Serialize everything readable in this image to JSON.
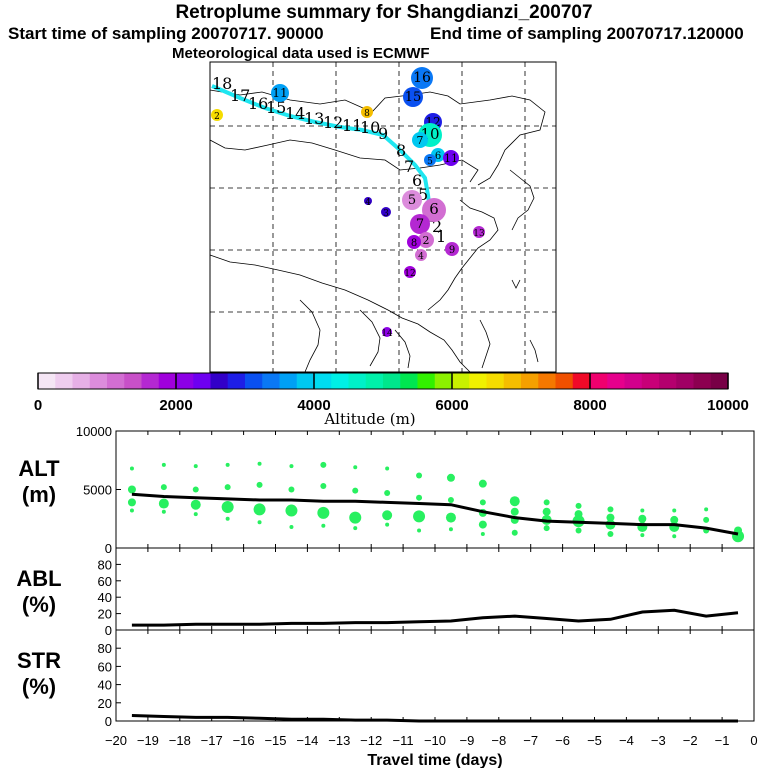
{
  "header": {
    "title": "Retroplume summary for Shangdianzi_200707",
    "start_time": "Start time of sampling 20070717. 90000",
    "end_time": "End time of sampling 20070717.120000",
    "met_data": "Meteorological data used is ECMWF"
  },
  "colorbar": {
    "label": "Altitude (m)",
    "ticks": [
      "0",
      "2000",
      "4000",
      "6000",
      "8000",
      "10000"
    ],
    "colors": [
      "#f5e6f5",
      "#efcdef",
      "#e6b0e6",
      "#dc8cdc",
      "#d26ed2",
      "#c850c8",
      "#b428d2",
      "#a000dc",
      "#8c00e6",
      "#6e00f0",
      "#3200c8",
      "#1e1ee6",
      "#0a50f0",
      "#0a78f5",
      "#00a0f5",
      "#00c8f0",
      "#00dcf0",
      "#00f0e6",
      "#00f0c8",
      "#00f0aa",
      "#00e68c",
      "#00e650",
      "#32f000",
      "#8cf000",
      "#c8f000",
      "#f0f000",
      "#f5dc00",
      "#f5be00",
      "#f5a000",
      "#f57800",
      "#f05000",
      "#f00a28",
      "#f0006e",
      "#e6008c",
      "#d2008c",
      "#c80078",
      "#b4006e",
      "#a00064",
      "#8c0050",
      "#780046"
    ]
  },
  "map": {
    "trajectory_labels": [
      "18",
      "17",
      "16",
      "15",
      "14",
      "13",
      "12",
      "11",
      "10",
      "9",
      "8",
      "7",
      "6",
      "5",
      "4",
      "3",
      "2",
      "1"
    ],
    "cluster_labels": [
      {
        "label": "16",
        "altitude": 3300
      },
      {
        "label": "11",
        "altitude": 3700
      },
      {
        "label": "15",
        "altitude": 3100
      },
      {
        "label": "12",
        "altitude": 2900
      },
      {
        "label": "8",
        "altitude": 6800
      },
      {
        "label": "2",
        "altitude": 6600
      },
      {
        "label": "10",
        "altitude": 4500
      },
      {
        "label": "7",
        "altitude": 3800
      },
      {
        "label": "6",
        "altitude": 3800
      },
      {
        "label": "11",
        "altitude": 2300
      },
      {
        "label": "5",
        "altitude": 3300
      },
      {
        "label": "4",
        "altitude": 2500
      },
      {
        "label": "3",
        "altitude": 2600
      },
      {
        "label": "5",
        "altitude": 900
      },
      {
        "label": "6",
        "altitude": 1200
      },
      {
        "label": "7",
        "altitude": 1500
      },
      {
        "label": "2",
        "altitude": 1200
      },
      {
        "label": "9",
        "altitude": 1600
      },
      {
        "label": "8",
        "altitude": 1900
      },
      {
        "label": "4",
        "altitude": 1000
      },
      {
        "label": "13",
        "altitude": 1500
      },
      {
        "label": "12",
        "altitude": 1800
      },
      {
        "label": "14",
        "altitude": 2000
      }
    ]
  },
  "chart_data": [
    {
      "type": "scatter",
      "panel": "ALT",
      "title": "ALT (m)",
      "ylabel": "ALT (m)",
      "ylim": [
        0,
        10000
      ],
      "yticks": [
        "10000",
        "5000",
        "0"
      ],
      "xlim": [
        -20,
        0
      ],
      "line": {
        "x": [
          -19.5,
          -18.5,
          -17.5,
          -16.5,
          -15.5,
          -14.5,
          -13.5,
          -12.5,
          -11.5,
          -10.5,
          -9.5,
          -8.5,
          -7.5,
          -6.5,
          -5.5,
          -4.5,
          -3.5,
          -2.5,
          -1.5,
          -0.5
        ],
        "y": [
          4600,
          4400,
          4300,
          4200,
          4100,
          4100,
          4000,
          4000,
          3900,
          3800,
          3700,
          3100,
          2600,
          2300,
          2200,
          2100,
          2000,
          2000,
          1700,
          1200
        ]
      },
      "points": [
        {
          "x": -19.5,
          "y": 6800,
          "s": 2
        },
        {
          "x": -19.5,
          "y": 5000,
          "s": 4
        },
        {
          "x": -19.5,
          "y": 3900,
          "s": 4
        },
        {
          "x": -19.5,
          "y": 3200,
          "s": 2
        },
        {
          "x": -18.5,
          "y": 7100,
          "s": 2
        },
        {
          "x": -18.5,
          "y": 5200,
          "s": 3
        },
        {
          "x": -18.5,
          "y": 3800,
          "s": 5
        },
        {
          "x": -18.5,
          "y": 3100,
          "s": 2
        },
        {
          "x": -17.5,
          "y": 7000,
          "s": 2
        },
        {
          "x": -17.5,
          "y": 5000,
          "s": 3
        },
        {
          "x": -17.5,
          "y": 3700,
          "s": 5
        },
        {
          "x": -17.5,
          "y": 2900,
          "s": 2
        },
        {
          "x": -16.5,
          "y": 7100,
          "s": 2
        },
        {
          "x": -16.5,
          "y": 5200,
          "s": 3
        },
        {
          "x": -16.5,
          "y": 3500,
          "s": 6
        },
        {
          "x": -16.5,
          "y": 2500,
          "s": 2
        },
        {
          "x": -15.5,
          "y": 7200,
          "s": 2
        },
        {
          "x": -15.5,
          "y": 5400,
          "s": 3
        },
        {
          "x": -15.5,
          "y": 3300,
          "s": 6
        },
        {
          "x": -15.5,
          "y": 2200,
          "s": 2
        },
        {
          "x": -14.5,
          "y": 7000,
          "s": 2
        },
        {
          "x": -14.5,
          "y": 5000,
          "s": 3
        },
        {
          "x": -14.5,
          "y": 3200,
          "s": 6
        },
        {
          "x": -14.5,
          "y": 1800,
          "s": 2
        },
        {
          "x": -13.5,
          "y": 7100,
          "s": 3
        },
        {
          "x": -13.5,
          "y": 5300,
          "s": 3
        },
        {
          "x": -13.5,
          "y": 3000,
          "s": 6
        },
        {
          "x": -13.5,
          "y": 1900,
          "s": 2
        },
        {
          "x": -12.5,
          "y": 6900,
          "s": 2
        },
        {
          "x": -12.5,
          "y": 4900,
          "s": 3
        },
        {
          "x": -12.5,
          "y": 2600,
          "s": 6
        },
        {
          "x": -12.5,
          "y": 1700,
          "s": 2
        },
        {
          "x": -11.5,
          "y": 6800,
          "s": 2
        },
        {
          "x": -11.5,
          "y": 4700,
          "s": 3
        },
        {
          "x": -11.5,
          "y": 2800,
          "s": 5
        },
        {
          "x": -11.5,
          "y": 2000,
          "s": 2
        },
        {
          "x": -10.5,
          "y": 6200,
          "s": 3
        },
        {
          "x": -10.5,
          "y": 4300,
          "s": 3
        },
        {
          "x": -10.5,
          "y": 2700,
          "s": 6
        },
        {
          "x": -10.5,
          "y": 1500,
          "s": 2
        },
        {
          "x": -9.5,
          "y": 6000,
          "s": 4
        },
        {
          "x": -9.5,
          "y": 4100,
          "s": 3
        },
        {
          "x": -9.5,
          "y": 2600,
          "s": 5
        },
        {
          "x": -9.5,
          "y": 1600,
          "s": 2
        },
        {
          "x": -8.5,
          "y": 5500,
          "s": 4
        },
        {
          "x": -8.5,
          "y": 3900,
          "s": 3
        },
        {
          "x": -8.5,
          "y": 3000,
          "s": 4
        },
        {
          "x": -8.5,
          "y": 2000,
          "s": 4
        },
        {
          "x": -8.5,
          "y": 1200,
          "s": 2
        },
        {
          "x": -7.5,
          "y": 4000,
          "s": 5
        },
        {
          "x": -7.5,
          "y": 3100,
          "s": 4
        },
        {
          "x": -7.5,
          "y": 2400,
          "s": 4
        },
        {
          "x": -7.5,
          "y": 1300,
          "s": 3
        },
        {
          "x": -6.5,
          "y": 3900,
          "s": 3
        },
        {
          "x": -6.5,
          "y": 3100,
          "s": 4
        },
        {
          "x": -6.5,
          "y": 2400,
          "s": 5
        },
        {
          "x": -6.5,
          "y": 1700,
          "s": 3
        },
        {
          "x": -5.5,
          "y": 3600,
          "s": 3
        },
        {
          "x": -5.5,
          "y": 2900,
          "s": 4
        },
        {
          "x": -5.5,
          "y": 2300,
          "s": 6
        },
        {
          "x": -5.5,
          "y": 1500,
          "s": 3
        },
        {
          "x": -4.5,
          "y": 3300,
          "s": 3
        },
        {
          "x": -4.5,
          "y": 2600,
          "s": 4
        },
        {
          "x": -4.5,
          "y": 2000,
          "s": 5
        },
        {
          "x": -4.5,
          "y": 1200,
          "s": 3
        },
        {
          "x": -3.5,
          "y": 3200,
          "s": 2
        },
        {
          "x": -3.5,
          "y": 2500,
          "s": 4
        },
        {
          "x": -3.5,
          "y": 1800,
          "s": 5
        },
        {
          "x": -3.5,
          "y": 1100,
          "s": 2
        },
        {
          "x": -2.5,
          "y": 3200,
          "s": 2
        },
        {
          "x": -2.5,
          "y": 2400,
          "s": 4
        },
        {
          "x": -2.5,
          "y": 1800,
          "s": 5
        },
        {
          "x": -2.5,
          "y": 1000,
          "s": 2
        },
        {
          "x": -1.5,
          "y": 3300,
          "s": 2
        },
        {
          "x": -1.5,
          "y": 2400,
          "s": 3
        },
        {
          "x": -1.5,
          "y": 1500,
          "s": 3
        },
        {
          "x": -0.5,
          "y": 1500,
          "s": 4
        },
        {
          "x": -0.5,
          "y": 1000,
          "s": 6
        }
      ]
    },
    {
      "type": "line",
      "panel": "ABL",
      "title": "ABL (%)",
      "ylabel": "ABL (%)",
      "ylim": [
        0,
        100
      ],
      "yticks": [
        "80",
        "60",
        "40",
        "20",
        "0"
      ],
      "x": [
        -19.5,
        -18.5,
        -17.5,
        -16.5,
        -15.5,
        -14.5,
        -13.5,
        -12.5,
        -11.5,
        -10.5,
        -9.5,
        -8.5,
        -7.5,
        -6.5,
        -5.5,
        -4.5,
        -3.5,
        -2.5,
        -1.5,
        -0.5
      ],
      "y": [
        6,
        6,
        7,
        7,
        7,
        8,
        8,
        9,
        9,
        10,
        11,
        15,
        17,
        14,
        11,
        13,
        22,
        24,
        17,
        21
      ]
    },
    {
      "type": "line",
      "panel": "STR",
      "title": "STR (%)",
      "ylabel": "STR (%)",
      "ylim": [
        0,
        100
      ],
      "yticks": [
        "80",
        "60",
        "40",
        "20",
        "0"
      ],
      "x": [
        -19.5,
        -18.5,
        -17.5,
        -16.5,
        -15.5,
        -14.5,
        -13.5,
        -12.5,
        -11.5,
        -10.5,
        -9.5,
        -8.5,
        -7.5,
        -6.5,
        -5.5,
        -4.5,
        -3.5,
        -2.5,
        -1.5,
        -0.5
      ],
      "y": [
        6,
        5,
        4,
        4,
        3,
        2,
        2,
        1,
        1,
        0,
        0,
        0,
        0,
        0,
        0,
        0,
        0,
        0,
        0,
        0
      ]
    }
  ],
  "xaxis": {
    "label": "Travel time (days)",
    "ticks": [
      "-20",
      "-19",
      "-18",
      "-17",
      "-16",
      "-15",
      "-14",
      "-13",
      "-12",
      "-11",
      "-10",
      "-9",
      "-8",
      "-7",
      "-6",
      "-5",
      "-4",
      "-3",
      "-2",
      "-1",
      "0"
    ]
  },
  "panels": {
    "alt_label_1": "ALT",
    "alt_label_2": "(m)",
    "abl_label_1": "ABL",
    "abl_label_2": "(%)",
    "str_label_1": "STR",
    "str_label_2": "(%)"
  }
}
